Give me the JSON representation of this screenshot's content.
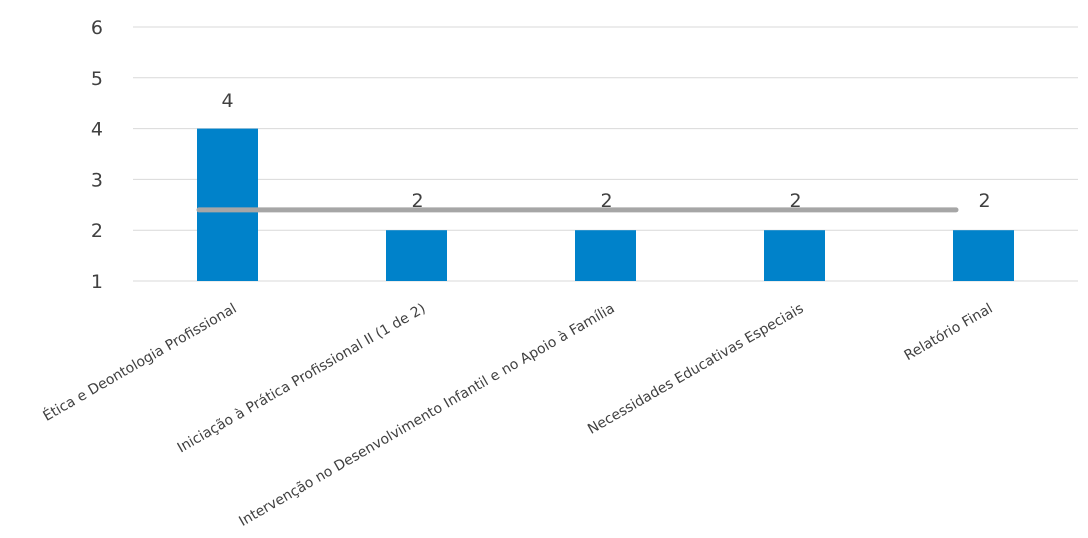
{
  "chart_data": {
    "type": "bar",
    "categories": [
      "Ética e Deontologia Profissional",
      "Iniciação à Prática Profissional II (1 de 2)",
      "Intervenção no Desenvolvimento Infantil e no Apoio à Família",
      "Necessidades Educativas Especiais",
      "Relatório Final"
    ],
    "values": [
      4,
      2,
      2,
      2,
      2
    ],
    "data_labels": [
      "4",
      "2",
      "2",
      "2",
      "2"
    ],
    "line": {
      "values": [
        2.4,
        2.4,
        2.4,
        2.4,
        2.4
      ],
      "color": "#a6a6a6"
    },
    "ylim": [
      1,
      6
    ],
    "yticks": [
      1,
      2,
      3,
      4,
      5,
      6
    ],
    "grid": true,
    "bar_color": "#0082ca",
    "grid_color": "#d9d9d9",
    "title": "",
    "xlabel": "",
    "ylabel": ""
  }
}
